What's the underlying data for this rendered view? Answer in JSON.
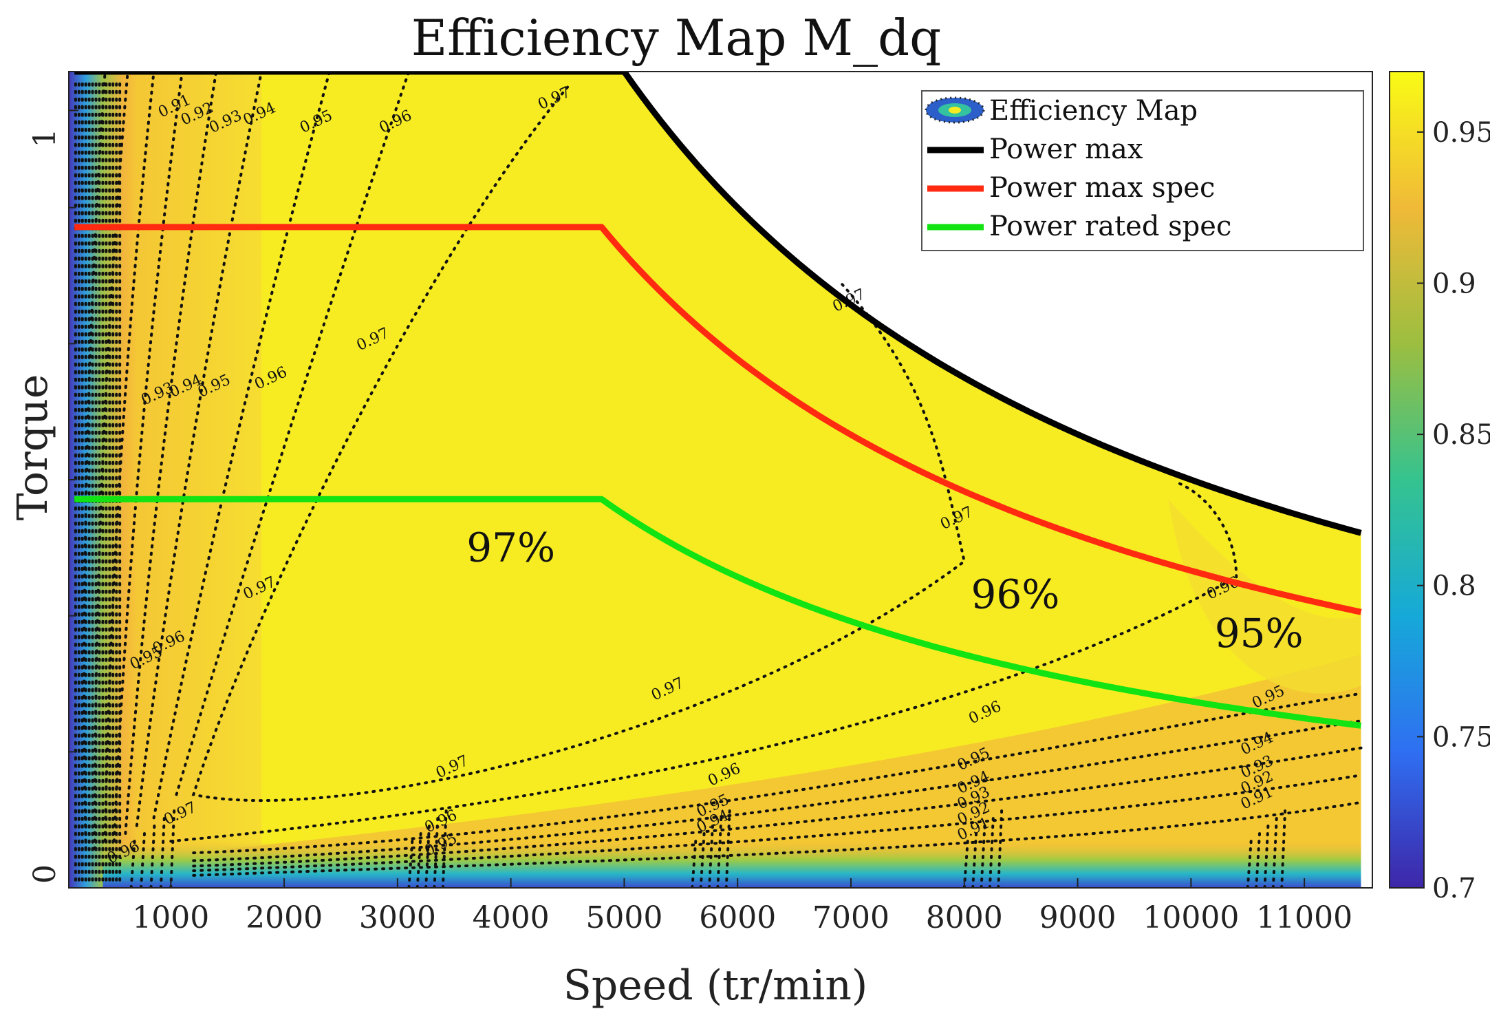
{
  "chart_data": {
    "type": "heatmap",
    "title": "Efficiency Map M_dq",
    "xlabel": "Speed (tr/min)",
    "ylabel": "Torque",
    "xlim": [
      100,
      11600
    ],
    "ylim": [
      0,
      1.05
    ],
    "x_ticks": [
      1000,
      2000,
      3000,
      4000,
      5000,
      6000,
      7000,
      8000,
      9000,
      10000,
      11000
    ],
    "x_tick_labels": [
      "1000",
      "2000",
      "3000",
      "4000",
      "5000",
      "6000",
      "7000",
      "8000",
      "9000",
      "10000",
      "11000"
    ],
    "y_ticks": [
      0,
      1
    ],
    "y_tick_labels": [
      "0",
      "1"
    ],
    "colorbar": {
      "range": [
        0.7,
        0.97
      ],
      "ticks": [
        0.7,
        0.75,
        0.8,
        0.85,
        0.9,
        0.95
      ],
      "tick_labels": [
        "0.7",
        "0.75",
        "0.8",
        "0.85",
        "0.9",
        "0.95"
      ],
      "colormap": [
        "#3e26a8",
        "#2f6ff2",
        "#16a9d8",
        "#35c38f",
        "#9cbe40",
        "#f0ba38",
        "#f9fb15"
      ]
    },
    "legend": {
      "position": "top-right",
      "entries": [
        {
          "label": "Efficiency Map",
          "color": "#1b6fb0"
        },
        {
          "label": "Power max",
          "color": "#000000"
        },
        {
          "label": "Power max spec",
          "color": "#ff2a10"
        },
        {
          "label": "Power rated spec",
          "color": "#12e312"
        }
      ]
    },
    "series": [
      {
        "name": "Power max",
        "corner_speed": 5000,
        "plateau_torque": 1.05,
        "x_end": 11500,
        "color": "#000000"
      },
      {
        "name": "Power max spec",
        "corner_speed": 4800,
        "plateau_torque": 0.85,
        "x_end": 11500,
        "color": "#ff2a10"
      },
      {
        "name": "Power rated spec",
        "corner_speed": 4800,
        "plateau_torque": 0.5,
        "x_end": 11500,
        "color": "#12e312"
      }
    ],
    "region_labels": [
      {
        "text": "97%",
        "x": 4000,
        "y": 0.42
      },
      {
        "text": "96%",
        "x": 8450,
        "y": 0.36
      },
      {
        "text": "95%",
        "x": 10600,
        "y": 0.31
      }
    ],
    "contour_levels": [
      0.91,
      0.92,
      0.93,
      0.94,
      0.95,
      0.96,
      0.97
    ],
    "contour_labels": [
      {
        "text": "0.97",
        "x": 4400,
        "y": 1.01
      },
      {
        "text": "0.96",
        "x": 3000,
        "y": 0.98
      },
      {
        "text": "0.95",
        "x": 2300,
        "y": 0.98
      },
      {
        "text": "0.94",
        "x": 1800,
        "y": 0.99
      },
      {
        "text": "0.93",
        "x": 1500,
        "y": 0.98
      },
      {
        "text": "0.92",
        "x": 1250,
        "y": 0.99
      },
      {
        "text": "0.91",
        "x": 1050,
        "y": 1.0
      },
      {
        "text": "0.97",
        "x": 7000,
        "y": 0.75
      },
      {
        "text": "0.97",
        "x": 2800,
        "y": 0.7
      },
      {
        "text": "0.96",
        "x": 1900,
        "y": 0.65
      },
      {
        "text": "0.95",
        "x": 1400,
        "y": 0.64
      },
      {
        "text": "0.94",
        "x": 1150,
        "y": 0.64
      },
      {
        "text": "0.93",
        "x": 900,
        "y": 0.63
      },
      {
        "text": "0.97",
        "x": 7950,
        "y": 0.47
      },
      {
        "text": "0.96",
        "x": 10300,
        "y": 0.38
      },
      {
        "text": "0.97",
        "x": 1800,
        "y": 0.38
      },
      {
        "text": "0.96",
        "x": 1000,
        "y": 0.31
      },
      {
        "text": "0.95",
        "x": 800,
        "y": 0.29
      },
      {
        "text": "0.97",
        "x": 5400,
        "y": 0.25
      },
      {
        "text": "0.97",
        "x": 3500,
        "y": 0.15
      },
      {
        "text": "0.97",
        "x": 1100,
        "y": 0.09
      },
      {
        "text": "0.96",
        "x": 8200,
        "y": 0.22
      },
      {
        "text": "0.96",
        "x": 5900,
        "y": 0.14
      },
      {
        "text": "0.96",
        "x": 3400,
        "y": 0.08
      },
      {
        "text": "0.96",
        "x": 600,
        "y": 0.04
      },
      {
        "text": "0.95",
        "x": 10700,
        "y": 0.24
      },
      {
        "text": "0.95",
        "x": 8100,
        "y": 0.16
      },
      {
        "text": "0.95",
        "x": 5800,
        "y": 0.1
      },
      {
        "text": "0.95",
        "x": 3400,
        "y": 0.05
      },
      {
        "text": "0.94",
        "x": 10600,
        "y": 0.18
      },
      {
        "text": "0.94",
        "x": 8100,
        "y": 0.13
      },
      {
        "text": "0.94",
        "x": 5800,
        "y": 0.08
      },
      {
        "text": "0.93",
        "x": 10600,
        "y": 0.15
      },
      {
        "text": "0.93",
        "x": 8100,
        "y": 0.11
      },
      {
        "text": "0.92",
        "x": 10600,
        "y": 0.13
      },
      {
        "text": "0.92",
        "x": 8100,
        "y": 0.09
      },
      {
        "text": "0.91",
        "x": 10600,
        "y": 0.11
      },
      {
        "text": "0.91",
        "x": 8100,
        "y": 0.07
      }
    ]
  }
}
